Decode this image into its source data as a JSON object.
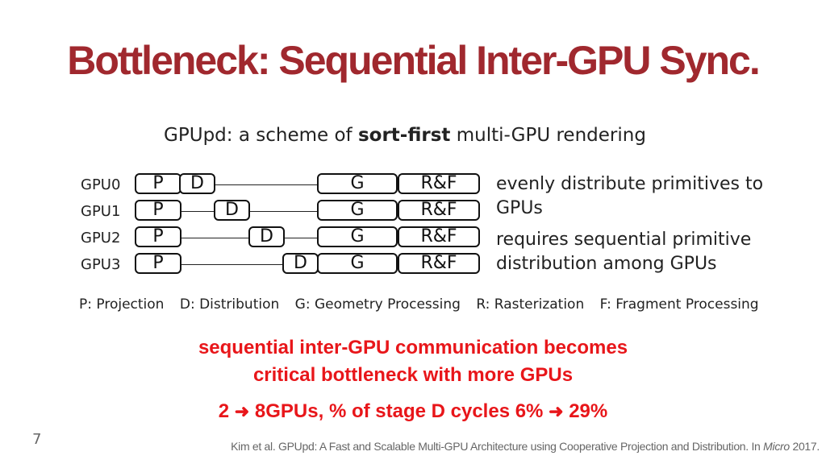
{
  "title": "Bottleneck: Sequential Inter-GPU Sync.",
  "subtitle": {
    "prefix": "GPUpd: a scheme of ",
    "bold": "sort-first",
    "suffix": " multi-GPU rendering"
  },
  "diagram": {
    "gpus": [
      {
        "label": "GPU0",
        "p": "P",
        "d": "D",
        "g": "G",
        "rf": "R&F"
      },
      {
        "label": "GPU1",
        "p": "P",
        "d": "D",
        "g": "G",
        "rf": "R&F"
      },
      {
        "label": "GPU2",
        "p": "P",
        "d": "D",
        "g": "G",
        "rf": "R&F"
      },
      {
        "label": "GPU3",
        "p": "P",
        "d": "D",
        "g": "G",
        "rf": "R&F"
      }
    ]
  },
  "notes": {
    "note1": "evenly distribute primitives to GPUs",
    "note2": "requires sequential primitive distribution among GPUs"
  },
  "legend": {
    "p": "P: Projection",
    "d": "D: Distribution",
    "g": "G: Geometry Processing",
    "r": "R: Rasterization",
    "f": "F: Fragment Processing"
  },
  "highlight": {
    "line1": "sequential inter-GPU communication becomes",
    "line2": "critical bottleneck with more GPUs",
    "stat_a": "2",
    "stat_b": "8GPUs, % of stage D cycles 6%",
    "stat_c": "29%"
  },
  "page_number": "7",
  "citation": {
    "prefix": "Kim et al. GPUpd: A Fast and Scalable Multi-GPU Architecture using Cooperative Projection and Distribution. In ",
    "venue": "Micro",
    "year": " 2017."
  }
}
